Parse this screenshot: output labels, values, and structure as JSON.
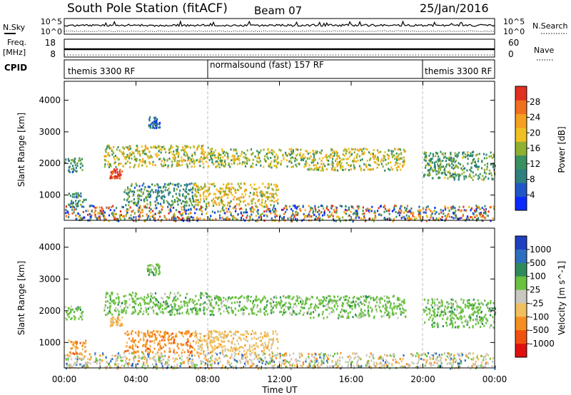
{
  "chart_data": {
    "type": "heatmap",
    "title": "South Pole Station (fitACF)",
    "beam": "Beam 07",
    "date": "25/Jan/2016",
    "xlabel": "Time UT",
    "x_ticks": [
      "00:00",
      "04:00",
      "08:00",
      "12:00",
      "16:00",
      "20:00",
      "00:00"
    ],
    "x_range_hours": [
      0,
      24
    ],
    "mode_boundaries_hours": [
      8,
      20
    ],
    "cpid_label": "CPID",
    "cpid_segments": [
      {
        "start": 0,
        "end": 8,
        "label": "themis 3300 RF"
      },
      {
        "start": 8,
        "end": 20,
        "label": "normalsound (fast) 157 RF"
      },
      {
        "start": 20,
        "end": 24,
        "label": "themis 3300 RF"
      }
    ],
    "nsky": {
      "label": "N.Sky",
      "ticks": [
        "10^5",
        "10^0"
      ],
      "right_label": "N.Search",
      "right_ticks": [
        "10^5",
        "10^0"
      ]
    },
    "freq": {
      "label_lines": [
        "Freq.",
        "[MHz]"
      ],
      "ticks": [
        18,
        8
      ],
      "right_label": "Nave",
      "right_ticks": [
        60,
        0
      ]
    },
    "power": {
      "ylabel": "Slant Range [km]",
      "yticks": [
        1000,
        2000,
        3000,
        4000
      ],
      "ylim": [
        200,
        4600
      ],
      "colorbar_label": "Power [dB]",
      "colorbar_ticks": [
        4,
        8,
        12,
        16,
        20,
        24,
        28
      ],
      "colorbar_range": [
        0,
        32
      ],
      "colors": [
        "#0a2bff",
        "#1f57c8",
        "#2f7f7f",
        "#3a9060",
        "#8fb030",
        "#f0c020",
        "#f5a020",
        "#f07020",
        "#e03020"
      ]
    },
    "velocity": {
      "ylabel": "Slant Range [km]",
      "yticks": [
        1000,
        2000,
        3000,
        4000
      ],
      "ylim": [
        200,
        4600
      ],
      "colorbar_label": "Velocity [m s^-1]",
      "colorbar_ticks": [
        "1000",
        "500",
        "100",
        "25",
        "-25",
        "-100",
        "-500",
        "-1000"
      ],
      "colors": [
        "#1f3fc0",
        "#2e6ec0",
        "#2f8a5a",
        "#6ac040",
        "#c8c8c0",
        "#f0c060",
        "#f59020",
        "#f05010",
        "#e01010"
      ]
    },
    "features": [
      {
        "start_h": 0.0,
        "end_h": 24.0,
        "range_km": [
          200,
          700
        ],
        "level": 0.45,
        "kind": "ground"
      },
      {
        "start_h": 0.0,
        "end_h": 1.0,
        "range_km": [
          1750,
          2200
        ],
        "level": 0.35,
        "vel": 25
      },
      {
        "start_h": 2.2,
        "end_h": 8.0,
        "range_km": [
          1900,
          2600
        ],
        "level": 0.55,
        "vel": 25
      },
      {
        "start_h": 8.0,
        "end_h": 13.5,
        "range_km": [
          1900,
          2500
        ],
        "level": 0.5,
        "vel": 25
      },
      {
        "start_h": 13.5,
        "end_h": 19.0,
        "range_km": [
          1800,
          2500
        ],
        "level": 0.55,
        "vel": 25
      },
      {
        "start_h": 20.0,
        "end_h": 24.0,
        "range_km": [
          1500,
          2400
        ],
        "level": 0.4,
        "vel": 25
      },
      {
        "start_h": 2.5,
        "end_h": 3.2,
        "range_km": [
          1550,
          1850
        ],
        "level": 0.95,
        "vel": -100
      },
      {
        "start_h": 4.6,
        "end_h": 5.3,
        "range_km": [
          3150,
          3500
        ],
        "level": 0.2,
        "vel": 25
      },
      {
        "start_h": 0.2,
        "end_h": 1.2,
        "range_km": [
          650,
          1100
        ],
        "level": 0.3,
        "vel": -500
      },
      {
        "start_h": 3.3,
        "end_h": 7.2,
        "range_km": [
          700,
          1400
        ],
        "level": 0.35,
        "vel": -500
      },
      {
        "start_h": 7.2,
        "end_h": 11.9,
        "range_km": [
          700,
          1400
        ],
        "level": 0.6,
        "vel": -100
      }
    ]
  }
}
